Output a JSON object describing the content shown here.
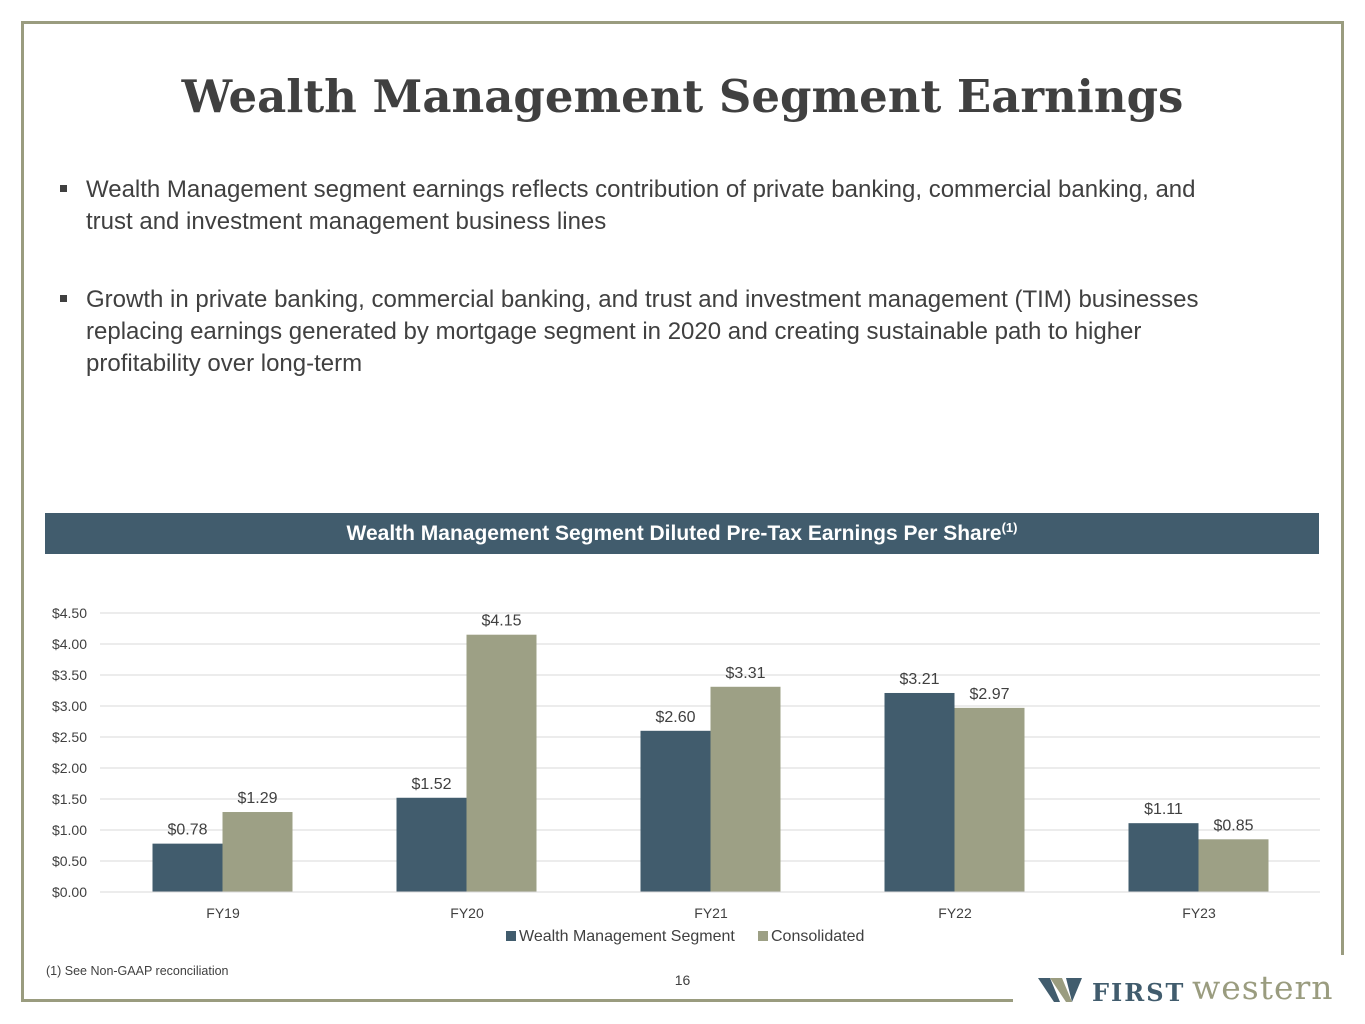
{
  "title": "Wealth Management Segment Earnings",
  "bullets": [
    "Wealth Management segment earnings reflects contribution of private banking, commercial banking, and trust and investment management business lines",
    "Growth in private banking, commercial banking, and trust and investment management (TIM) businesses replacing earnings generated by mortgage segment in 2020 and creating sustainable path to higher profitability over long-term"
  ],
  "chart_header": {
    "text": "Wealth Management Segment Diluted Pre-Tax Earnings Per Share",
    "superscript": "(1)"
  },
  "chart_data": {
    "type": "bar",
    "title": "Wealth Management Segment Diluted Pre-Tax Earnings Per Share(1)",
    "categories": [
      "FY19",
      "FY20",
      "FY21",
      "FY22",
      "FY23"
    ],
    "series": [
      {
        "name": "Wealth Management Segment",
        "values": [
          0.78,
          1.52,
          2.6,
          3.21,
          1.11
        ],
        "labels": [
          "$0.78",
          "$1.52",
          "$2.60",
          "$3.21",
          "$1.11"
        ],
        "color": "#415c6d"
      },
      {
        "name": "Consolidated",
        "values": [
          1.29,
          4.15,
          3.31,
          2.97,
          0.85
        ],
        "labels": [
          "$1.29",
          "$4.15",
          "$3.31",
          "$2.97",
          "$0.85"
        ],
        "color": "#9da085"
      }
    ],
    "ylim": [
      0,
      4.5
    ],
    "yticks": [
      "$0.00",
      "$0.50",
      "$1.00",
      "$1.50",
      "$2.00",
      "$2.50",
      "$3.00",
      "$3.50",
      "$4.00",
      "$4.50"
    ],
    "grid": true,
    "legend": "bottom-center",
    "xlabel": "",
    "ylabel": ""
  },
  "footnote": "(1)  See Non-GAAP reconciliation",
  "page_number": "16",
  "logo": {
    "first": "FIRST",
    "western": "western",
    "colors": {
      "first": "#415c6d",
      "western": "#9a9c7f"
    }
  }
}
